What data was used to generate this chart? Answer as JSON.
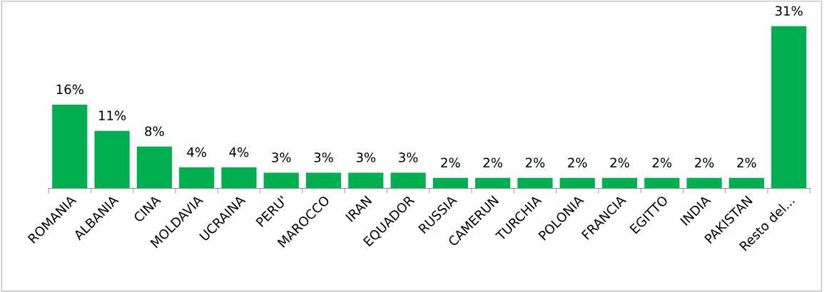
{
  "chart_data": {
    "type": "bar",
    "categories": [
      "ROMANIA",
      "ALBANIA",
      "CINA",
      "MOLDAVIA",
      "UCRAINA",
      "PERU'",
      "MAROCCO",
      "IRAN",
      "EQUADOR",
      "RUSSIA",
      "CAMERUN",
      "TURCHIA",
      "POLONIA",
      "FRANCIA",
      "EGITTO",
      "INDIA",
      "PAKISTAN",
      "Resto del..."
    ],
    "values": [
      16,
      11,
      8,
      4,
      4,
      3,
      3,
      3,
      3,
      2,
      2,
      2,
      2,
      2,
      2,
      2,
      2,
      31
    ],
    "value_labels": [
      "16%",
      "11%",
      "8%",
      "4%",
      "4%",
      "3%",
      "3%",
      "3%",
      "3%",
      "2%",
      "2%",
      "2%",
      "2%",
      "2%",
      "2%",
      "2%",
      "2%",
      "31%"
    ],
    "color": "#00b050",
    "tick_labels": "x",
    "grid": false,
    "legend": false
  }
}
